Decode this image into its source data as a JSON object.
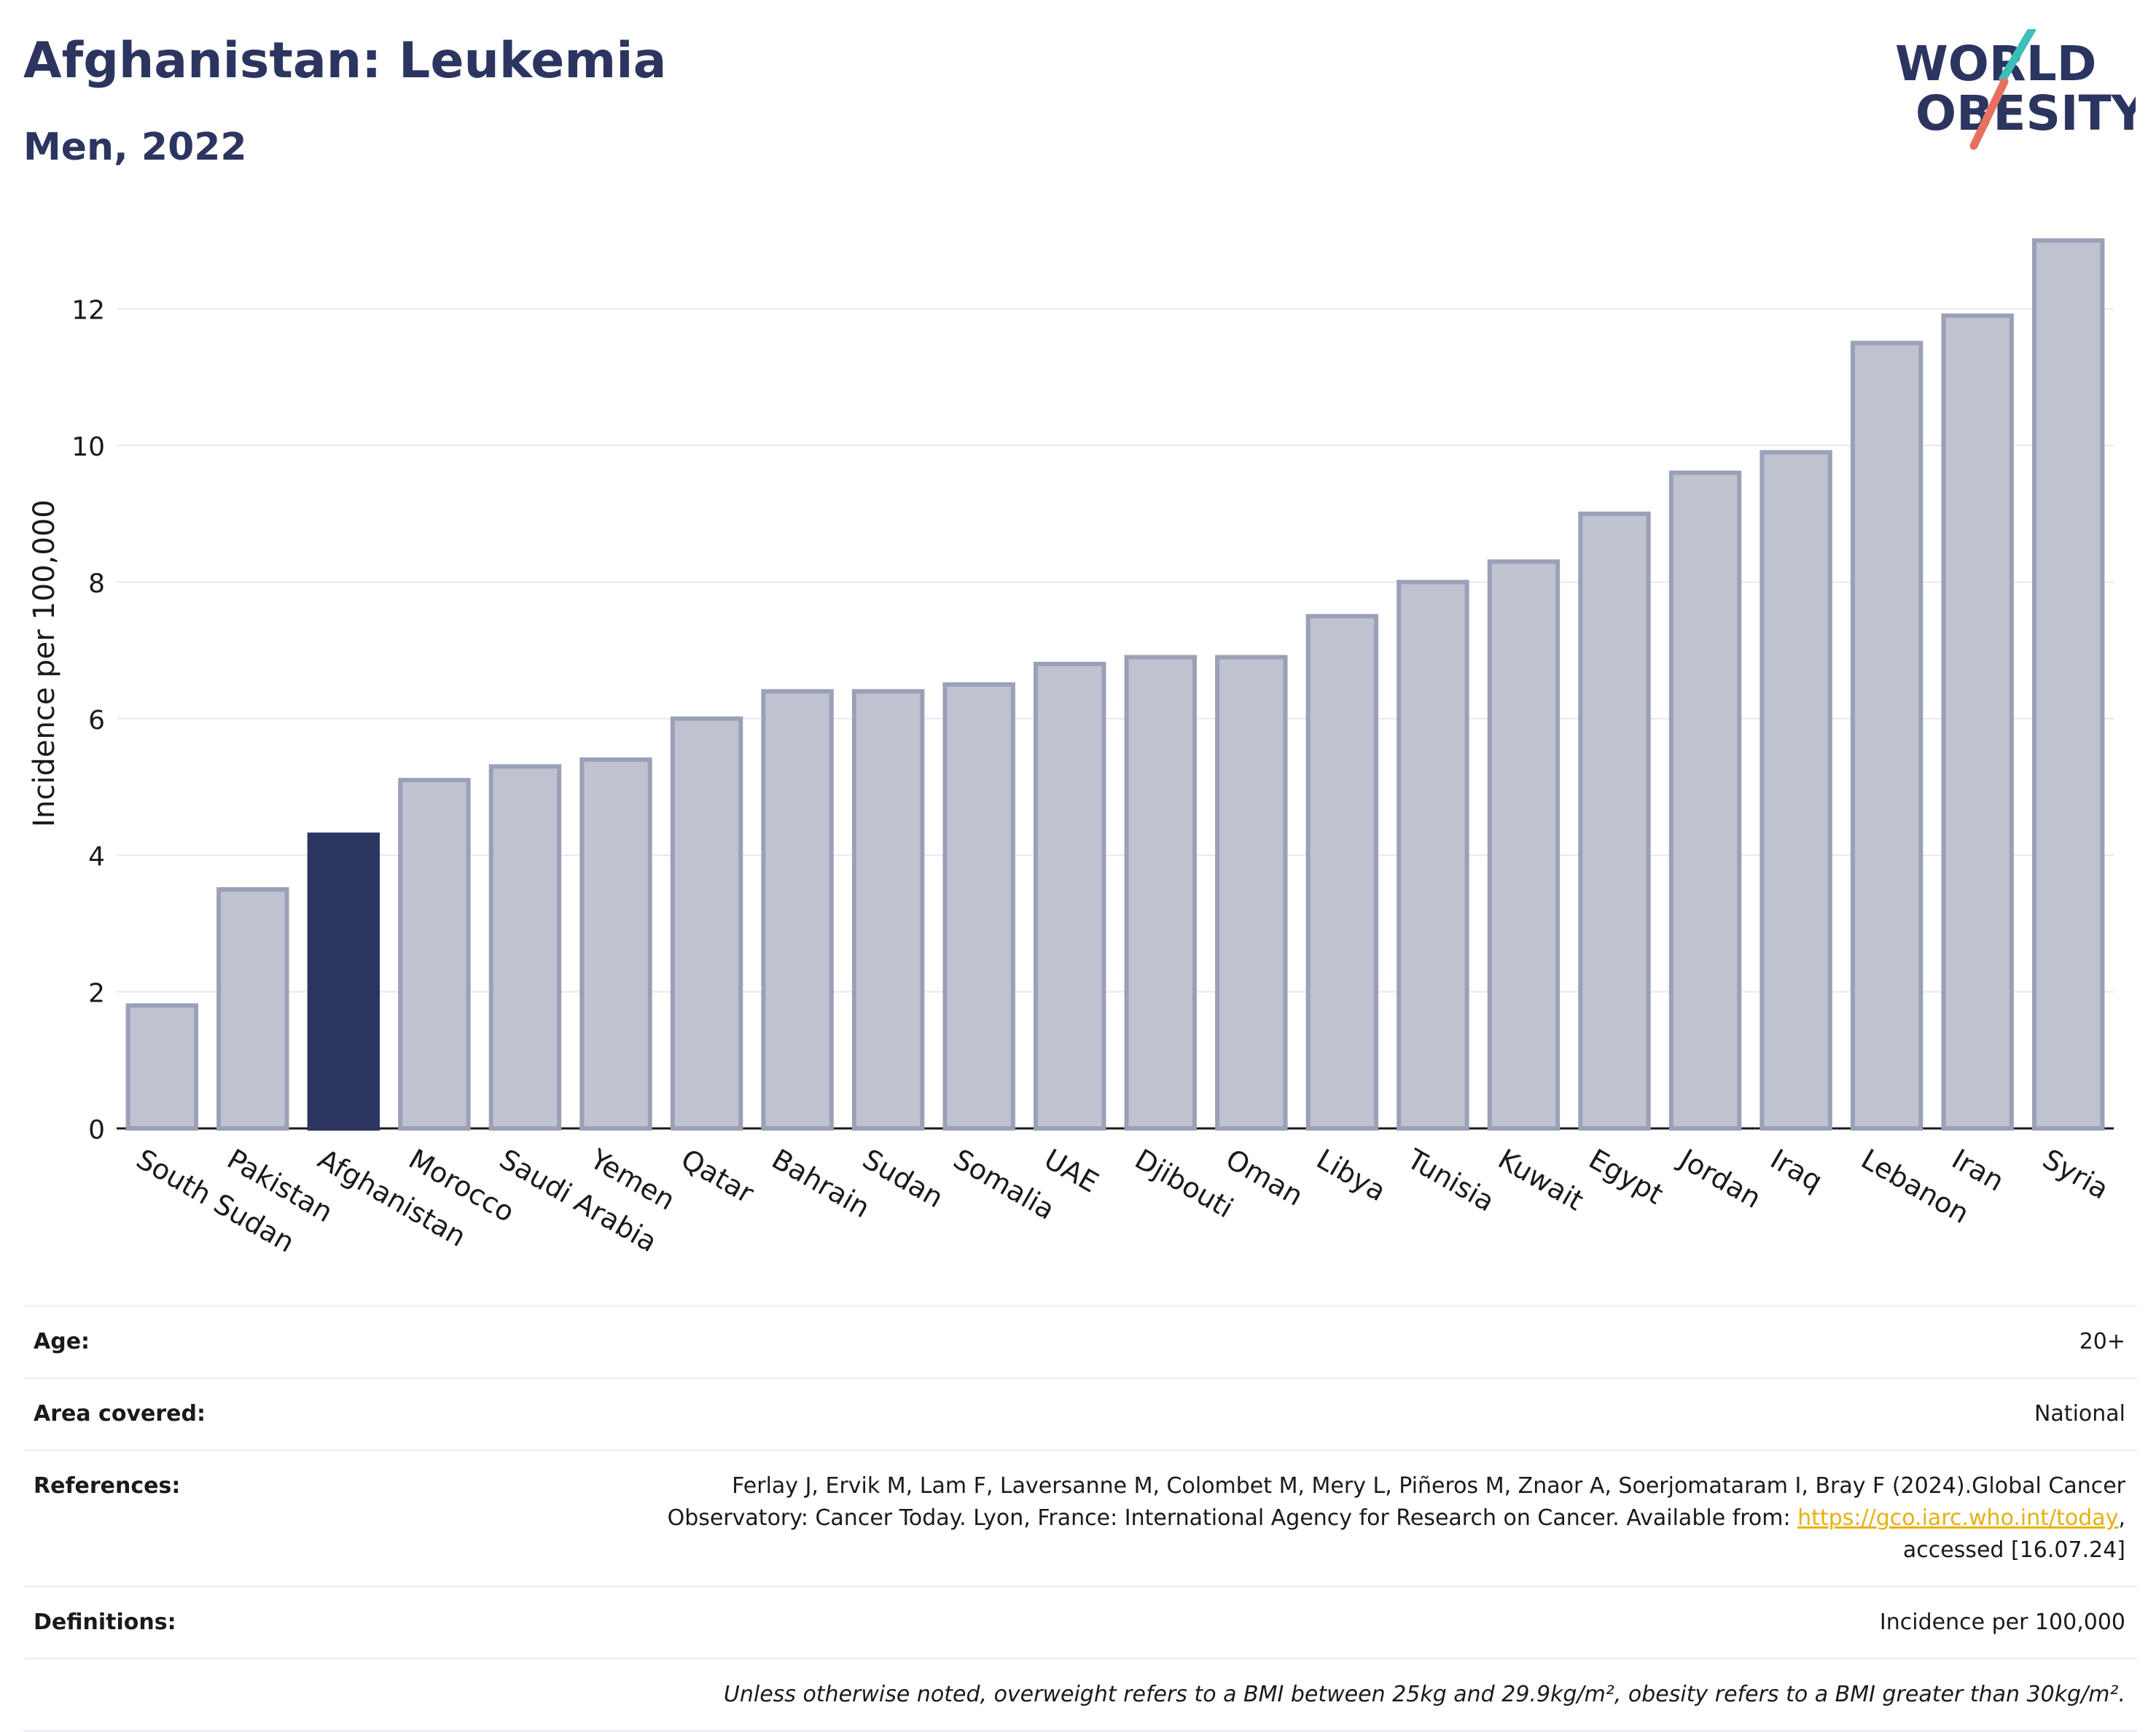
{
  "header": {
    "title": "Afghanistan: Leukemia",
    "subtitle": "Men, 2022",
    "logo_line1": "WORLD",
    "logo_line2": "OBESITY"
  },
  "colors": {
    "highlight": "#2c3560",
    "bar": "#bfc3d0",
    "bar_border": "#9aa0b7",
    "grid": "#e6e8f0",
    "logo_teal": "#3bbfb8",
    "logo_coral": "#e8705f"
  },
  "chart_data": {
    "type": "bar",
    "title": "Afghanistan: Leukemia",
    "subtitle": "Men, 2022",
    "ylabel": "Incidence per 100,000",
    "xlabel": "",
    "ylim": [
      0,
      13
    ],
    "yticks": [
      0,
      2,
      4,
      6,
      8,
      10,
      12
    ],
    "grid": true,
    "highlight": "Afghanistan",
    "categories": [
      "South Sudan",
      "Pakistan",
      "Afghanistan",
      "Morocco",
      "Saudi Arabia",
      "Yemen",
      "Qatar",
      "Bahrain",
      "Sudan",
      "Somalia",
      "UAE",
      "Djibouti",
      "Oman",
      "Libya",
      "Tunisia",
      "Kuwait",
      "Egypt",
      "Jordan",
      "Iraq",
      "Lebanon",
      "Iran",
      "Syria"
    ],
    "values": [
      1.8,
      3.5,
      4.3,
      5.1,
      5.3,
      5.4,
      6.0,
      6.4,
      6.4,
      6.5,
      6.8,
      6.9,
      6.9,
      7.5,
      8.0,
      8.3,
      9.0,
      9.6,
      9.9,
      11.5,
      11.9,
      13.0
    ]
  },
  "info": {
    "age_label": "Age:",
    "age_value": "20+",
    "area_label": "Area covered:",
    "area_value": "National",
    "references_label": "References:",
    "references_text1": "Ferlay J, Ervik M, Lam F, Laversanne M, Colombet M, Mery L, Piñeros M, Znaor A, Soerjomataram I, Bray F (2024).Global Cancer",
    "references_text2": "Observatory: Cancer Today. Lyon, France: International Agency for Research on Cancer. Available from: ",
    "references_link": "https://gco.iarc.who.int/today",
    "references_text3": ",",
    "references_text4": "accessed [16.07.24]",
    "definitions_label": "Definitions:",
    "definitions_value": "Incidence per 100,000",
    "note": "Unless otherwise noted, overweight refers to a BMI between 25kg and 29.9kg/m², obesity refers to a BMI greater than 30kg/m²."
  }
}
